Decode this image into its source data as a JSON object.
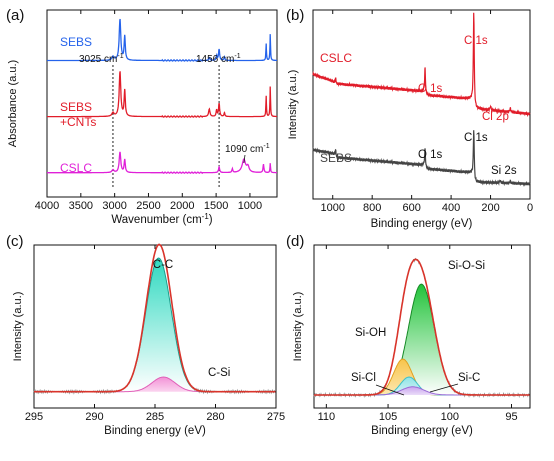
{
  "figure": {
    "background": "#ffffff"
  },
  "chart_data": [
    {
      "panel_label": "(a)",
      "type": "line",
      "xlabel": "Wavenumber (cm",
      "xlabel_sup": "-1",
      "xlabel_tail": ")",
      "ylabel": "Absorbance (a.u.)",
      "xlim": [
        4000,
        600
      ],
      "ylim": [
        0,
        100
      ],
      "reversed_x": true,
      "y_ticks_shown": false,
      "xticks": [
        4000,
        3500,
        3000,
        2500,
        2000,
        1500,
        1000
      ],
      "xtick_labels": [
        "4000",
        "3500",
        "3000",
        "2500",
        "2000",
        "1500",
        "1000"
      ],
      "series": [
        {
          "name": "SEBS",
          "color": "#2563eb",
          "baseline": 73,
          "peaks": [
            [
              3025,
              2,
              18
            ],
            [
              2921,
              22,
              14
            ],
            [
              2851,
              13,
              10
            ],
            [
              1601,
              1.5,
              10
            ],
            [
              1493,
              2.5,
              8
            ],
            [
              1456,
              6,
              10
            ],
            [
              1377,
              2,
              8
            ],
            [
              760,
              9,
              5
            ],
            [
              700,
              14,
              5
            ]
          ]
        },
        {
          "name": "SEBS\n+CNTs",
          "color": "#e11d2a",
          "baseline": 43,
          "peaks": [
            [
              3025,
              2,
              18
            ],
            [
              2921,
              24,
              14
            ],
            [
              2851,
              14,
              10
            ],
            [
              1601,
              4,
              12
            ],
            [
              1493,
              3.5,
              8
            ],
            [
              1456,
              7,
              10
            ],
            [
              1377,
              2,
              8
            ],
            [
              760,
              11,
              5
            ],
            [
              700,
              16,
              5
            ]
          ]
        },
        {
          "name": "CSLC",
          "color": "#e020d8",
          "baseline": 13,
          "peaks": [
            [
              3025,
              1.5,
              18
            ],
            [
              2921,
              11,
              14
            ],
            [
              2851,
              7,
              10
            ],
            [
              1456,
              3,
              10
            ],
            [
              1260,
              2,
              8
            ],
            [
              1090,
              7,
              30
            ],
            [
              1030,
              3,
              20
            ],
            [
              800,
              4.5,
              8
            ],
            [
              700,
              5,
              5
            ]
          ]
        }
      ],
      "annotations": [
        {
          "text": "3025 cm",
          "sup": "-1",
          "x": 3025
        },
        {
          "text": "1456 cm",
          "sup": "-1",
          "x": 1456
        },
        {
          "text": "1090 cm",
          "sup": "-1",
          "x": 1090
        }
      ],
      "dotted_lines_x": [
        3025,
        1456
      ]
    },
    {
      "panel_label": "(b)",
      "type": "line",
      "xlabel": "Binding energy (eV)",
      "ylabel": "Intensity (a.u.)",
      "xlim": [
        1100,
        0
      ],
      "ylim": [
        0,
        100
      ],
      "reversed_x": true,
      "y_ticks_shown": false,
      "xticks": [
        1000,
        800,
        600,
        400,
        200,
        0
      ],
      "xtick_labels": [
        "1000",
        "800",
        "600",
        "400",
        "200",
        "0"
      ],
      "series": [
        {
          "name": "CSLC",
          "color": "#e11d2a",
          "segments": [
            [
              1100,
              66
            ],
            [
              990,
              62
            ],
            [
              985,
              64
            ],
            [
              980,
              61
            ],
            [
              540,
              57
            ],
            [
              532,
              57
            ],
            [
              525,
              55
            ],
            [
              300,
              53
            ],
            [
              288,
              52
            ],
            [
              280,
              48
            ],
            [
              200,
              47
            ],
            [
              0,
              45
            ]
          ],
          "peaks": [
            [
              532,
              13,
              2.5
            ],
            [
              285,
              50,
              2.5
            ],
            [
              200,
              2,
              3
            ],
            [
              100,
              2,
              3
            ]
          ]
        },
        {
          "name": "SEBS",
          "color": "#444444",
          "segments": [
            [
              1100,
              26
            ],
            [
              990,
              24
            ],
            [
              985,
              26
            ],
            [
              980,
              22
            ],
            [
              540,
              18
            ],
            [
              532,
              18
            ],
            [
              525,
              16
            ],
            [
              300,
              14
            ],
            [
              288,
              13
            ],
            [
              280,
              9
            ],
            [
              0,
              8
            ]
          ],
          "peaks": [
            [
              532,
              9,
              2.5
            ],
            [
              285,
              26,
              2.5
            ],
            [
              151,
              1.2,
              3
            ],
            [
              100,
              1.2,
              3
            ]
          ]
        }
      ],
      "peak_labels": [
        {
          "series": "CSLC",
          "text": "O 1s",
          "x": 532
        },
        {
          "series": "CSLC",
          "text": "C 1s",
          "x": 285
        },
        {
          "series": "CSLC",
          "text": "Cl 2p",
          "x": 200
        },
        {
          "series": "SEBS",
          "text": "O 1s",
          "x": 532
        },
        {
          "series": "SEBS",
          "text": "C 1s",
          "x": 285
        },
        {
          "series": "SEBS",
          "text": "Si 2s",
          "x": 151
        }
      ]
    },
    {
      "panel_label": "(c)",
      "type": "area",
      "xlabel": "Binding energy (eV)",
      "ylabel": "Intensity (a.u.)",
      "xlim": [
        295,
        275
      ],
      "ylim": [
        0,
        100
      ],
      "reversed_x": true,
      "y_ticks_shown": false,
      "xticks": [
        295,
        290,
        285,
        280,
        275
      ],
      "xtick_labels": [
        "295",
        "290",
        "285",
        "280",
        "275"
      ],
      "baseline": 10,
      "components": [
        {
          "name": "C-C",
          "center": 284.7,
          "height": 82,
          "sigma": 1.05,
          "fill_top": "#2fd9c0",
          "fill_bottom": "#ffffff",
          "line": "#1c9c8c"
        },
        {
          "name": "C-Si",
          "center": 284.3,
          "height": 9,
          "sigma": 0.95,
          "fill_top": "#f291d6",
          "fill_bottom": "#fbd4ef",
          "line": "#e060b8"
        }
      ],
      "envelope_color": "#d9342b",
      "raw_color": "#8a8a8a",
      "labels": [
        {
          "text": "C-C",
          "x": 284.7
        },
        {
          "text": "C-Si",
          "x": 282.6
        }
      ]
    },
    {
      "panel_label": "(d)",
      "type": "area",
      "xlabel": "Binding energy (eV)",
      "ylabel": "Intensity (a.u.)",
      "xlim": [
        111,
        93.5
      ],
      "ylim": [
        0,
        100
      ],
      "reversed_x": true,
      "y_ticks_shown": false,
      "xticks": [
        110,
        105,
        100,
        95
      ],
      "xtick_labels": [
        "110",
        "105",
        "100",
        "95"
      ],
      "baseline": 8,
      "components": [
        {
          "name": "Si-O-Si",
          "center": 102.3,
          "height": 68,
          "sigma": 1.05,
          "fill_top": "#22c33a",
          "fill_bottom": "#ffffff",
          "line": "#158a25"
        },
        {
          "name": "Si-OH",
          "center": 103.8,
          "height": 22,
          "sigma": 0.75,
          "fill_top": "#f7c44a",
          "fill_bottom": "#fde8b3",
          "line": "#e0a020"
        },
        {
          "name": "Si-C",
          "center": 103.3,
          "height": 11,
          "sigma": 0.7,
          "fill_top": "#8fe3e6",
          "fill_bottom": "#d8f6f7",
          "line": "#3cc0c8"
        },
        {
          "name": "Si-Cl",
          "center": 103.0,
          "height": 5,
          "sigma": 0.9,
          "fill_top": "#c9a4ef",
          "fill_bottom": "#eadcf8",
          "line": "#9a6bd6"
        }
      ],
      "envelope_color": "#d9342b",
      "raw_color": "#8a8a8a",
      "labels": [
        {
          "text": "Si-O-Si",
          "x": 101.3
        },
        {
          "text": "Si-OH",
          "x": 105.8
        },
        {
          "text": "Si-Cl",
          "x": 106.2
        },
        {
          "text": "Si-C",
          "x": 101.6
        }
      ]
    }
  ]
}
